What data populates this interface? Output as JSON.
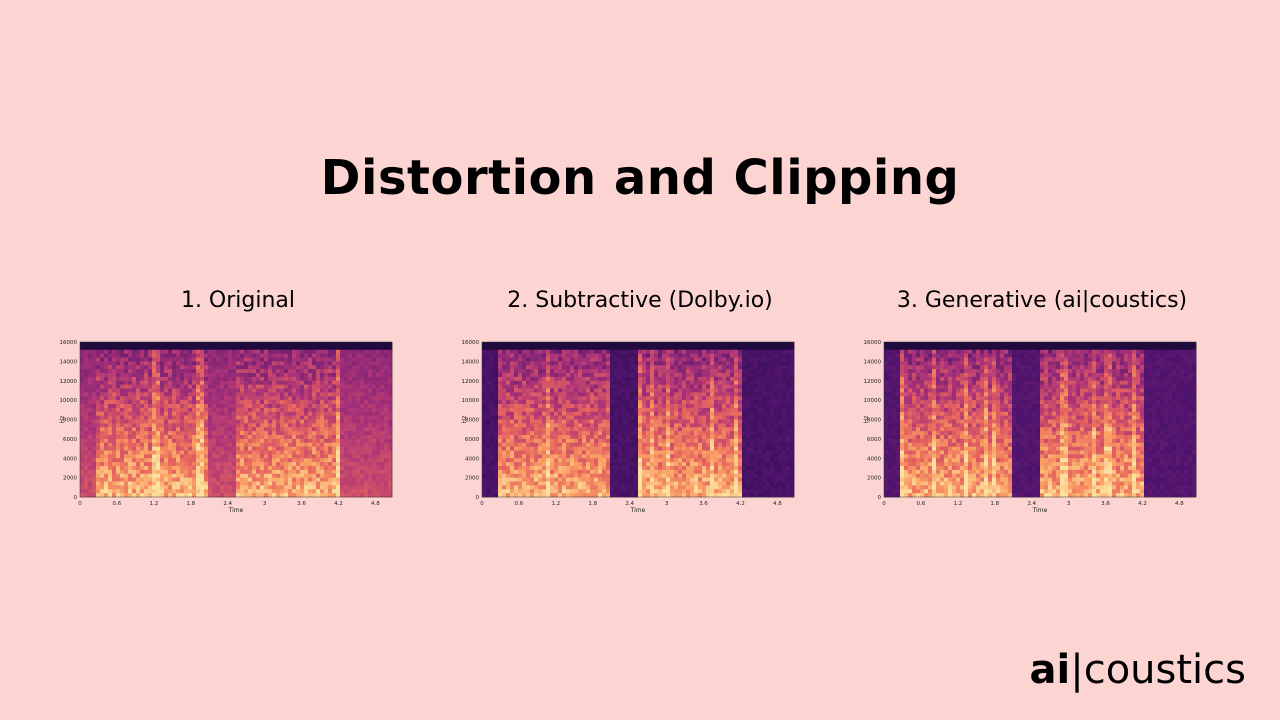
{
  "title": "Distortion and Clipping",
  "panels": [
    {
      "label": "1. Original",
      "variant": "original"
    },
    {
      "label": "2. Subtractive (Dolby.io)",
      "variant": "subtractive"
    },
    {
      "label": "3. Generative (ai|coustics)",
      "variant": "generative"
    }
  ],
  "spectrogram_axes": {
    "ylabel": "Hz",
    "xlabel": "Time",
    "yticks": [
      "0",
      "2000",
      "4000",
      "6000",
      "8000",
      "10000",
      "12000",
      "14000",
      "16000"
    ],
    "xticks": [
      "0",
      "0.6",
      "1.2",
      "1.8",
      "2.4",
      "3",
      "3.6",
      "4.2",
      "4.8"
    ]
  },
  "logo": {
    "ai": "ai",
    "separator": "|",
    "rest": "coustics"
  },
  "colors": {
    "background": "#fcd5d3",
    "spec_low": "#3a0f5a",
    "spec_high": "#fbd59a"
  }
}
